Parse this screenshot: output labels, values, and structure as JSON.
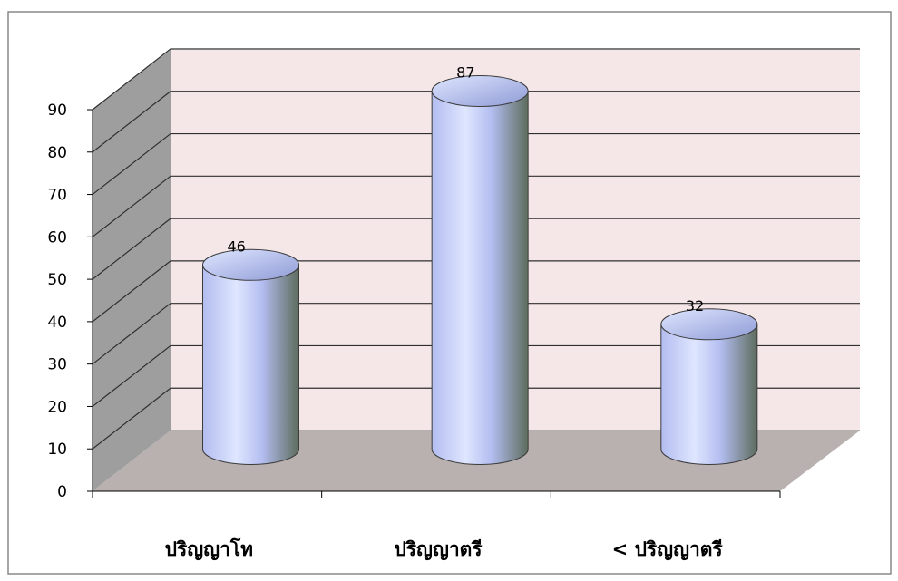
{
  "chart_data": {
    "type": "bar",
    "style": "3d-cylinder",
    "categories": [
      "ปริญญาโท",
      "ปริญญาตรี",
      "< ปริญญาตรี"
    ],
    "values": [
      46,
      87,
      32
    ],
    "data_labels": [
      "46",
      "87",
      "32"
    ],
    "y_ticks": [
      "0",
      "10",
      "20",
      "30",
      "40",
      "50",
      "60",
      "70",
      "80",
      "90"
    ],
    "ylim": [
      0,
      90
    ],
    "grid": true,
    "legend": "none",
    "colors": {
      "back_wall": "#f5e7e8",
      "side_wall": "#9e9e9e",
      "floor": "#b9b0b0",
      "gridline": "#2f2f2f",
      "cylinder_light": "#dfe6ff",
      "cylinder_mid": "#b3bdf0",
      "cylinder_dark": "#5d6c5d",
      "border": "#888888"
    }
  }
}
